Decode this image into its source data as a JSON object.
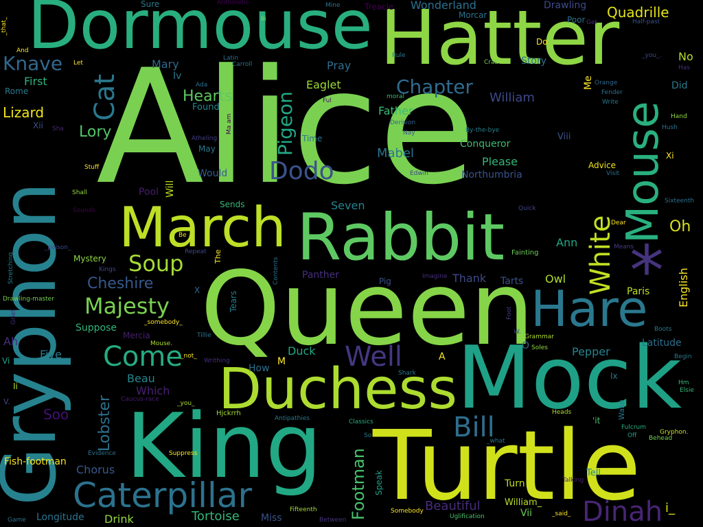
{
  "words": [
    {
      "text": "Alice",
      "color": "#7ad151"
    },
    {
      "text": "Queen",
      "color": "#86d549"
    },
    {
      "text": "King",
      "color": "#22a884"
    },
    {
      "text": "Turtle",
      "color": "#d0e11c"
    },
    {
      "text": "Mock",
      "color": "#1fa187"
    },
    {
      "text": "Hatter",
      "color": "#8ed645"
    },
    {
      "text": "Gryphon",
      "color": "#26828e"
    },
    {
      "text": "Dormouse",
      "color": "#29af7f"
    },
    {
      "text": "Rabbit",
      "color": "#5ec962"
    },
    {
      "text": "Duchess",
      "color": "#addc30"
    },
    {
      "text": "March",
      "color": "#bddf26"
    },
    {
      "text": "Mouse",
      "color": "#2ab07f"
    },
    {
      "text": "Hare",
      "color": "#2a788e"
    },
    {
      "text": "Caterpillar",
      "color": "#2c728e"
    },
    {
      "text": "*",
      "color": "#46337e"
    },
    {
      "text": "Come",
      "color": "#25ac82"
    },
    {
      "text": "Well",
      "color": "#453781"
    },
    {
      "text": "Dinah",
      "color": "#482576"
    },
    {
      "text": "White",
      "color": "#c2df23"
    },
    {
      "text": "Cat",
      "color": "#2a788e"
    },
    {
      "text": "Bill",
      "color": "#2e6e8e"
    },
    {
      "text": "Dodo",
      "color": "#3b528b"
    },
    {
      "text": "Soup",
      "color": "#a5db36"
    },
    {
      "text": "Majesty",
      "color": "#7ad151"
    },
    {
      "text": "Knave",
      "color": "#31688e"
    },
    {
      "text": "Chapter",
      "color": "#2f6c8e"
    },
    {
      "text": "Pigeon",
      "color": "#22a884"
    },
    {
      "text": "Lobster",
      "color": "#2c718e"
    },
    {
      "text": "Footman",
      "color": "#4ac16d"
    },
    {
      "text": "Quadrille",
      "color": "#e5e419"
    },
    {
      "text": "Hearts",
      "color": "#5ec962"
    },
    {
      "text": "Lory",
      "color": "#52c569"
    },
    {
      "text": "Cheshire",
      "color": "#38588c"
    },
    {
      "text": "Tortoise",
      "color": "#35b779"
    },
    {
      "text": "Beautiful",
      "color": "#472d7b"
    },
    {
      "text": "Lizard",
      "color": "#f1e51d"
    },
    {
      "text": "Chorus",
      "color": "#38598c"
    },
    {
      "text": "Oh",
      "color": "#d8e219"
    },
    {
      "text": "Wonderland",
      "color": "#2c728e"
    },
    {
      "text": "Drawling",
      "color": "#3e4989"
    },
    {
      "text": "Mary",
      "color": "#2f6b8e"
    },
    {
      "text": "Ann",
      "color": "#22a884"
    },
    {
      "text": "English",
      "color": "#fde725"
    },
    {
      "text": "Beau",
      "color": "#24868e"
    },
    {
      "text": "Which",
      "color": "#482173"
    },
    {
      "text": "Soo",
      "color": "#440f76"
    },
    {
      "text": "Father",
      "color": "#3aba76"
    },
    {
      "text": "William",
      "color": "#3e4989"
    },
    {
      "text": "Mabel",
      "color": "#2a768e"
    },
    {
      "text": "Seven",
      "color": "#25848e"
    },
    {
      "text": "Story",
      "color": "#2c718e"
    },
    {
      "text": "Eaglet",
      "color": "#9fda3a"
    },
    {
      "text": "Pray",
      "color": "#2e6d8e"
    },
    {
      "text": "Please",
      "color": "#35b779"
    },
    {
      "text": "Conqueror",
      "color": "#3fbc73"
    },
    {
      "text": "Northumbria",
      "color": "#3b528b"
    },
    {
      "text": "First",
      "color": "#2db27d"
    },
    {
      "text": "Five",
      "color": "#287d8e"
    },
    {
      "text": "Speak",
      "color": "#1f9e89"
    },
    {
      "text": "Latitude",
      "color": "#2d708e"
    },
    {
      "text": "Pepper",
      "color": "#25848e"
    },
    {
      "text": "Owl",
      "color": "#b0dd2f"
    },
    {
      "text": "Tarts",
      "color": "#3b528b"
    },
    {
      "text": "Thank",
      "color": "#3e4989"
    },
    {
      "text": "Panther",
      "color": "#472f7d"
    },
    {
      "text": "Duck",
      "color": "#22a884"
    },
    {
      "text": "Paris",
      "color": "#bddf26"
    },
    {
      "text": "Ah",
      "color": "#472f7d"
    },
    {
      "text": "Suppose",
      "color": "#31b57b"
    },
    {
      "text": "Mystery",
      "color": "#8ed645"
    },
    {
      "text": "Mercia",
      "color": "#481f70"
    },
    {
      "text": "How",
      "color": "#2d708e"
    },
    {
      "text": "Longitude",
      "color": "#2b748e"
    },
    {
      "text": "Drink",
      "color": "#95d840"
    },
    {
      "text": "Miss",
      "color": "#3b528b"
    },
    {
      "text": "Fish-footman",
      "color": "#f6e620"
    },
    {
      "text": "Tell",
      "color": "#238a8d"
    },
    {
      "text": "Turn",
      "color": "#c2df23"
    },
    {
      "text": "William_",
      "color": "#b8de29"
    },
    {
      "text": "Vii",
      "color": "#6ccd5a"
    },
    {
      "text": "i_",
      "color": "#dde318"
    },
    {
      "text": "Time",
      "color": "#2c738e"
    },
    {
      "text": "May",
      "color": "#2a778e"
    },
    {
      "text": "Would",
      "color": "#355f8d"
    },
    {
      "text": "Sends",
      "color": "#35b779"
    },
    {
      "text": "Will",
      "color": "#c2df23"
    },
    {
      "text": "Pool",
      "color": "#481c6e"
    },
    {
      "text": "Found",
      "color": "#23888e"
    },
    {
      "text": "Iv",
      "color": "#297a8e"
    },
    {
      "text": "Ada",
      "color": "#2d708e"
    },
    {
      "text": "Carroll",
      "color": "#2d718e"
    },
    {
      "text": "Latin",
      "color": "#2e6e8e"
    },
    {
      "text": "Australia",
      "color": "#7ad151"
    },
    {
      "text": "Ful",
      "color": "#481467"
    },
    {
      "text": "moral",
      "color": "#3aba76"
    },
    {
      "text": "Derision",
      "color": "#33638d"
    },
    {
      "text": "Nay",
      "color": "#3b528b"
    },
    {
      "text": "By-the-bye",
      "color": "#277f8e"
    },
    {
      "text": "Edwin",
      "color": "#3e4989"
    },
    {
      "text": "Quick",
      "color": "#414487"
    },
    {
      "text": "Fainting",
      "color": "#6ccd5a"
    },
    {
      "text": "Imagine",
      "color": "#472f7d"
    },
    {
      "text": "Pig",
      "color": "#3b528b"
    },
    {
      "text": "Tears",
      "color": "#277f8e"
    },
    {
      "text": "Contents",
      "color": "#2d708e"
    },
    {
      "text": "The",
      "color": "#fde725"
    },
    {
      "text": "Repeat",
      "color": "#3e4989"
    },
    {
      "text": "Be",
      "color": "#fde725"
    },
    {
      "text": "Stuff",
      "color": "#fde725"
    },
    {
      "text": "Shall",
      "color": "#93d741"
    },
    {
      "text": "Sounds",
      "color": "#440154"
    },
    {
      "text": "Kings",
      "color": "#3e4989"
    },
    {
      "text": "_poison_",
      "color": "#3e4989"
    },
    {
      "text": "Stretching",
      "color": "#277f8e"
    },
    {
      "text": "Drawling-master",
      "color": "#75d054"
    },
    {
      "text": "Grief",
      "color": "#472f7d"
    },
    {
      "text": "Vi",
      "color": "#20a386"
    },
    {
      "text": "Ii",
      "color": "#addc30"
    },
    {
      "text": "V.",
      "color": "#3e4989"
    },
    {
      "text": "Game",
      "color": "#2c728e"
    },
    {
      "text": "Evidence",
      "color": "#2c728e"
    },
    {
      "text": "Suppress",
      "color": "#fde725"
    },
    {
      "text": "Caucus-race",
      "color": "#481c6e"
    },
    {
      "text": "_you_",
      "color": "#addc30"
    },
    {
      "text": "Hjckrrh",
      "color": "#a5db36"
    },
    {
      "text": "Antipathies",
      "color": "#2a788e"
    },
    {
      "text": "Classics",
      "color": "#27ad81"
    },
    {
      "text": "So",
      "color": "#2a788e"
    },
    {
      "text": "_what",
      "color": "#2a788e"
    },
    {
      "text": "Shark",
      "color": "#2a788e"
    },
    {
      "text": "Somebody",
      "color": "#fde725"
    },
    {
      "text": "Fifteenth",
      "color": "#a5db36"
    },
    {
      "text": "Between",
      "color": "#46337e"
    },
    {
      "text": "Uglification",
      "color": "#4ac16d"
    },
    {
      "text": "_said_",
      "color": "#fde725"
    },
    {
      "text": "Talking",
      "color": "#482576"
    },
    {
      "text": "Heads",
      "color": "#addc30"
    },
    {
      "text": "'it",
      "color": "#4ac16d"
    },
    {
      "text": "Fulcrum",
      "color": "#25ac82"
    },
    {
      "text": "Off",
      "color": "#20a386"
    },
    {
      "text": "Behead",
      "color": "#75d054"
    },
    {
      "text": "Gryphon.",
      "color": "#cae11f"
    },
    {
      "text": "Elsie",
      "color": "#35b779"
    },
    {
      "text": "Hm",
      "color": "#3aba76"
    },
    {
      "text": "Begin",
      "color": "#2a788e"
    },
    {
      "text": "Boots",
      "color": "#2a788e"
    },
    {
      "text": "Soles",
      "color": "#93d741"
    },
    {
      "text": "Grammar",
      "color": "#addc30"
    },
    {
      "text": "W.",
      "color": "#414487"
    },
    {
      "text": "Foot",
      "color": "#433e85"
    },
    {
      "text": "Wake",
      "color": "#2a788e"
    },
    {
      "text": "Ix",
      "color": "#2a788e"
    },
    {
      "text": "O",
      "color": "#31688e"
    },
    {
      "text": "A",
      "color": "#fde725"
    },
    {
      "text": "M",
      "color": "#fde725"
    },
    {
      "text": "_not_",
      "color": "#fde725"
    },
    {
      "text": "Writhing",
      "color": "#472f7d"
    },
    {
      "text": "Tillie",
      "color": "#2a788e"
    },
    {
      "text": "Mouse.",
      "color": "#addc30"
    },
    {
      "text": "_somebody_",
      "color": "#fde725"
    },
    {
      "text": "X",
      "color": "#31688e"
    },
    {
      "text": "Sixteenth",
      "color": "#2c728e"
    },
    {
      "text": "Means",
      "color": "#433e85"
    },
    {
      "text": "Dear",
      "color": "#fde725"
    },
    {
      "text": "Visit",
      "color": "#2c728e"
    },
    {
      "text": "Advice",
      "color": "#f1e51d"
    },
    {
      "text": "Xi",
      "color": "#fde725"
    },
    {
      "text": "Viii",
      "color": "#3b528b"
    },
    {
      "text": "Hush",
      "color": "#2c728e"
    },
    {
      "text": "Hand",
      "color": "#93d741"
    },
    {
      "text": "Orange",
      "color": "#31688e"
    },
    {
      "text": "Fender",
      "color": "#2c728e"
    },
    {
      "text": "Write",
      "color": "#2a788e"
    },
    {
      "text": "Has",
      "color": "#472f7d"
    },
    {
      "text": "Did",
      "color": "#287d8e"
    },
    {
      "text": "No",
      "color": "#b8de29"
    },
    {
      "text": "_you_.",
      "color": "#3e4989"
    },
    {
      "text": "Half-past",
      "color": "#3b528b"
    },
    {
      "text": "Get",
      "color": "#472f7d"
    },
    {
      "text": "Poor",
      "color": "#2c728e"
    },
    {
      "text": "Morcar",
      "color": "#2c728e"
    },
    {
      "text": "Crab",
      "color": "#75d054"
    },
    {
      "text": "Do",
      "color": "#fde725"
    },
    {
      "text": "Rule",
      "color": "#2a788e"
    },
    {
      "text": "Treacle",
      "color": "#440154"
    },
    {
      "text": "Mine",
      "color": "#2a788e"
    },
    {
      "text": "Arithmetic",
      "color": "#440154"
    },
    {
      "text": "Iii",
      "color": "#addc30"
    },
    {
      "text": "Sure",
      "color": "#2a788e"
    },
    {
      "text": "_that_",
      "color": "#fde725"
    },
    {
      "text": "And",
      "color": "#fde725"
    },
    {
      "text": "Let",
      "color": "#fde725"
    },
    {
      "text": "Rome",
      "color": "#2a788e"
    },
    {
      "text": "Xii",
      "color": "#3b528b"
    },
    {
      "text": "Sha",
      "color": "#482576"
    },
    {
      "text": "Atheling",
      "color": "#433e85"
    },
    {
      "text": "Ma am",
      "color": "#440154"
    },
    {
      "text": "Me",
      "color": "#fde725"
    }
  ]
}
